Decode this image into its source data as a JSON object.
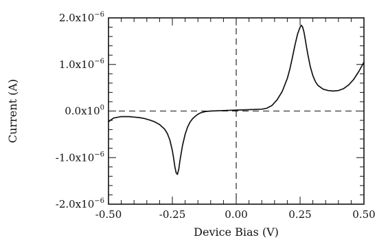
{
  "chart_data": {
    "type": "line",
    "xlabel": "Device Bias (V)",
    "ylabel": "Current (A)",
    "xlim": [
      -0.5,
      0.5
    ],
    "ylim": [
      -2e-06,
      2e-06
    ],
    "grid": false,
    "x_ticks": [
      {
        "value": -0.5,
        "label": "-0.50"
      },
      {
        "value": -0.25,
        "label": "-0.25"
      },
      {
        "value": 0.0,
        "label": "0.00"
      },
      {
        "value": 0.25,
        "label": "0.25"
      },
      {
        "value": 0.5,
        "label": "0.50"
      }
    ],
    "y_ticks": [
      {
        "value": 2e-06,
        "mantissa": "2.0x10",
        "exp": "−6"
      },
      {
        "value": 1e-06,
        "mantissa": "1.0x10",
        "exp": "−6"
      },
      {
        "value": 0.0,
        "mantissa": "0.0x10",
        "exp": "0"
      },
      {
        "value": -1e-06,
        "mantissa": "-1.0x10",
        "exp": "−6"
      },
      {
        "value": -2e-06,
        "mantissa": "-2.0x10",
        "exp": "−6"
      }
    ],
    "reference_lines": [
      {
        "axis": "y",
        "value": 0.0,
        "style": "dashed"
      },
      {
        "axis": "x",
        "value": 0.0,
        "style": "dashed"
      }
    ],
    "series": [
      {
        "x": [
          -0.5,
          -0.48,
          -0.45,
          -0.42,
          -0.4,
          -0.38,
          -0.36,
          -0.34,
          -0.32,
          -0.3,
          -0.28,
          -0.27,
          -0.26,
          -0.25,
          -0.245,
          -0.24,
          -0.235,
          -0.23,
          -0.225,
          -0.22,
          -0.21,
          -0.2,
          -0.19,
          -0.18,
          -0.17,
          -0.16,
          -0.15,
          -0.14,
          -0.12,
          -0.1,
          -0.05,
          0.0,
          0.05,
          0.1,
          0.12,
          0.14,
          0.16,
          0.18,
          0.2,
          0.21,
          0.22,
          0.23,
          0.24,
          0.25,
          0.255,
          0.26,
          0.265,
          0.27,
          0.275,
          0.28,
          0.29,
          0.3,
          0.31,
          0.32,
          0.34,
          0.36,
          0.38,
          0.4,
          0.42,
          0.44,
          0.46,
          0.48,
          0.5
        ],
        "y": [
          -2.3e-07,
          -1.5e-07,
          -1.2e-07,
          -1.2e-07,
          -1.3e-07,
          -1.4e-07,
          -1.6e-07,
          -1.9e-07,
          -2.3e-07,
          -2.9e-07,
          -3.9e-07,
          -4.8e-07,
          -6.2e-07,
          -8.5e-07,
          -1.02e-06,
          -1.2e-06,
          -1.33e-06,
          -1.36e-06,
          -1.25e-06,
          -1.05e-06,
          -7.3e-07,
          -5e-07,
          -3.4e-07,
          -2.3e-07,
          -1.6e-07,
          -1.1e-07,
          -7e-08,
          -4e-08,
          -1e-08,
          0.0,
          1e-08,
          2e-08,
          3e-08,
          4e-08,
          6e-08,
          1.2e-07,
          2.4e-07,
          4.2e-07,
          7e-07,
          9e-07,
          1.15e-06,
          1.42e-06,
          1.65e-06,
          1.8e-06,
          1.84e-06,
          1.8e-06,
          1.7e-06,
          1.55e-06,
          1.38e-06,
          1.22e-06,
          9.5e-07,
          7.6e-07,
          6.3e-07,
          5.5e-07,
          4.7e-07,
          4.4e-07,
          4.3e-07,
          4.4e-07,
          4.8e-07,
          5.6e-07,
          6.8e-07,
          8.5e-07,
          1.05e-06
        ]
      }
    ]
  }
}
